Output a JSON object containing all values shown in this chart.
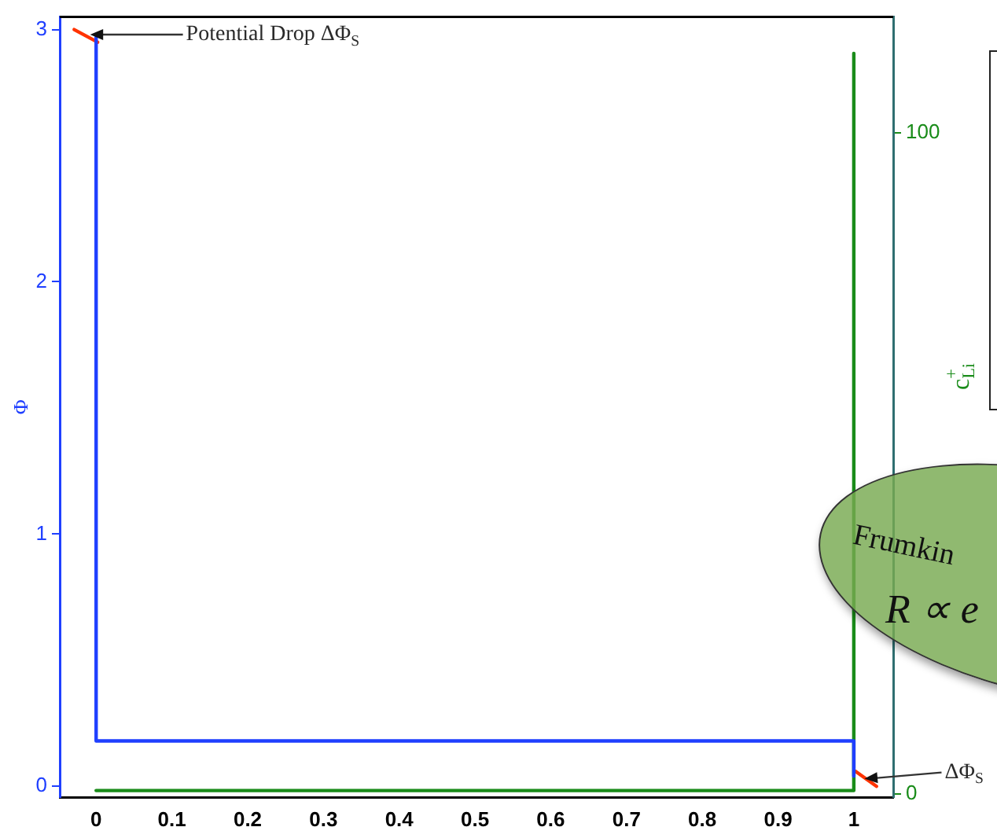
{
  "chart_data": {
    "type": "line",
    "ylabel": "Φ",
    "y2label": "c$_{Li}$$^{+}$",
    "xlim": [
      -0.048,
      1.052
    ],
    "xticks": [
      0,
      0.1,
      0.2,
      0.3,
      0.4,
      0.5,
      0.6,
      0.7,
      0.8,
      0.9,
      1
    ],
    "ylim": [
      -0.043,
      3.05
    ],
    "yticks": [
      0,
      1,
      2,
      3
    ],
    "y2lim": [
      -0.5,
      117.5
    ],
    "y2ticks": [
      0,
      100
    ],
    "grid": false,
    "legend": false,
    "marker": "none",
    "line_style": "solid",
    "series": [
      {
        "color": "#1f3fff",
        "x": [
          0,
          0,
          1,
          1
        ],
        "values": [
          2.97,
          0.18,
          0.18,
          0.04
        ]
      },
      {
        "color": "#1a8c1a",
        "axis": "y2",
        "x": [
          0,
          1,
          1
        ],
        "values": [
          0.5,
          0.5,
          112
        ]
      },
      {
        "color": "#ff3300",
        "x": [
          -0.029,
          0.002
        ],
        "values": [
          3.0,
          2.95
        ]
      },
      {
        "color": "#ff3300",
        "x": [
          1.002,
          1.03
        ],
        "values": [
          0.06,
          0.0
        ]
      }
    ],
    "annotations": [
      {
        "text": "Potential Drop ΔΦ$_{S}$",
        "x": -0.01,
        "y": 2.98
      },
      {
        "text": "ΔΦ$_{S}$",
        "x": 1.012,
        "y": 0.03
      },
      "Frumkin",
      "R ∝ e"
    ]
  }
}
